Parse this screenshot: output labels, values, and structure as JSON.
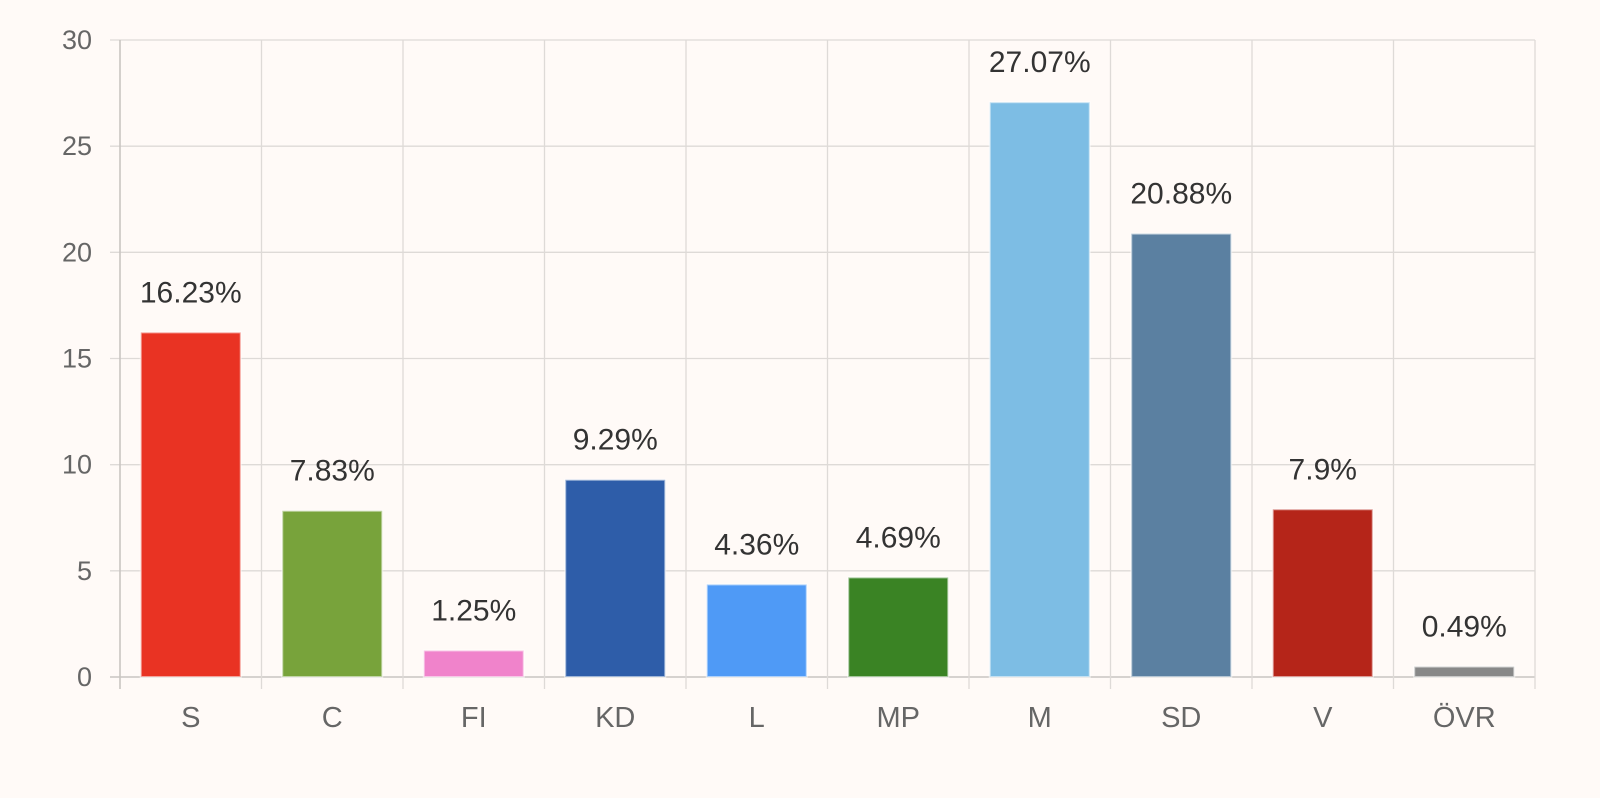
{
  "chart_data": {
    "type": "bar",
    "categories": [
      "S",
      "C",
      "FI",
      "KD",
      "L",
      "MP",
      "M",
      "SD",
      "V",
      "ÖVR"
    ],
    "values": [
      16.23,
      7.83,
      1.25,
      9.29,
      4.36,
      4.69,
      27.07,
      20.88,
      7.9,
      0.49
    ],
    "data_labels": [
      "16.23%",
      "7.83%",
      "1.25%",
      "9.29%",
      "4.36%",
      "4.69%",
      "27.07%",
      "20.88%",
      "7.9%",
      "0.49%"
    ],
    "colors": [
      "#e93323",
      "#78a33b",
      "#f083cb",
      "#2e5da9",
      "#4f9af6",
      "#3a8324",
      "#7dbde4",
      "#5b80a1",
      "#b52519",
      "#888888"
    ],
    "yticks": [
      0,
      5,
      10,
      15,
      20,
      25,
      30
    ],
    "ylim": [
      0,
      30
    ],
    "grid": true,
    "legend": "none",
    "title": "",
    "xlabel": "",
    "ylabel": ""
  }
}
